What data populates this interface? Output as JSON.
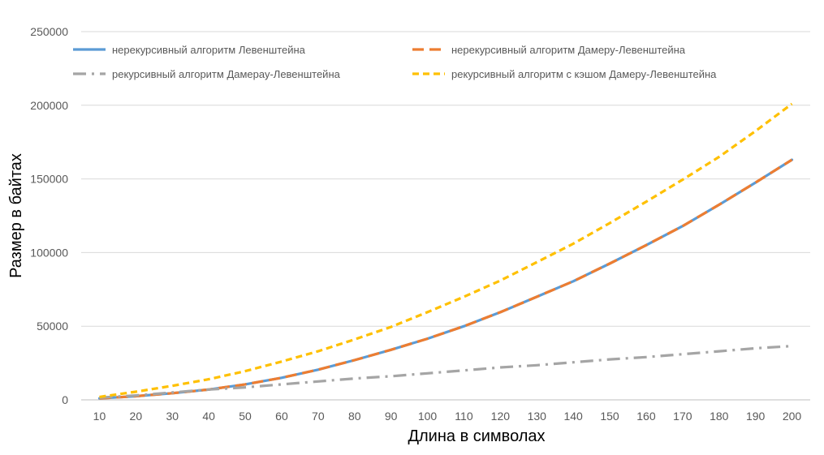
{
  "chart_data": {
    "type": "line",
    "title": "",
    "xlabel": "Длина в символах",
    "ylabel": "Размер в байтах",
    "categories": [
      "10",
      "20",
      "30",
      "40",
      "50",
      "60",
      "70",
      "80",
      "90",
      "100",
      "110",
      "120",
      "130",
      "140",
      "150",
      "160",
      "170",
      "180",
      "190",
      "200"
    ],
    "yticks": [
      "0",
      "50000",
      "100000",
      "150000",
      "200000",
      "250000"
    ],
    "ylim": [
      0,
      250000
    ],
    "grid": "horizontal",
    "legend_position": "top",
    "series": [
      {
        "name": "нерекурсивный алгоритм Левенштейна",
        "color": "#5B9BD5",
        "dash": "solid",
        "values": [
          1000,
          2500,
          4500,
          7000,
          10500,
          15000,
          20500,
          27000,
          34000,
          41500,
          50000,
          59500,
          70000,
          80500,
          92500,
          105000,
          118000,
          132500,
          147500,
          163000
        ]
      },
      {
        "name": "нерекурсивный алгоритм Дамеру-Левенштейна",
        "color": "#ED7D31",
        "dash": "dash",
        "values": [
          1000,
          2500,
          4500,
          7000,
          10500,
          15000,
          20500,
          27000,
          34000,
          41500,
          50000,
          59500,
          70000,
          80500,
          92500,
          105000,
          118000,
          132500,
          147500,
          163000
        ]
      },
      {
        "name": "рекурсивный алгоритм Дамерау-Левенштейна",
        "color": "#A5A5A5",
        "dash": "dashdot",
        "values": [
          1500,
          3000,
          5000,
          7000,
          8500,
          10500,
          12500,
          14500,
          16000,
          18000,
          20000,
          22000,
          23500,
          25500,
          27500,
          29000,
          31000,
          33000,
          35000,
          36500
        ]
      },
      {
        "name": "рекурсивный алгоритм с кэшом Дамеру-Левенштейна",
        "color": "#FFC000",
        "dash": "shortdash",
        "values": [
          2000,
          5500,
          9500,
          14000,
          19500,
          26000,
          33000,
          41000,
          49500,
          59500,
          70000,
          81000,
          93500,
          106000,
          120000,
          134500,
          149500,
          165000,
          182500,
          201000
        ]
      }
    ]
  }
}
